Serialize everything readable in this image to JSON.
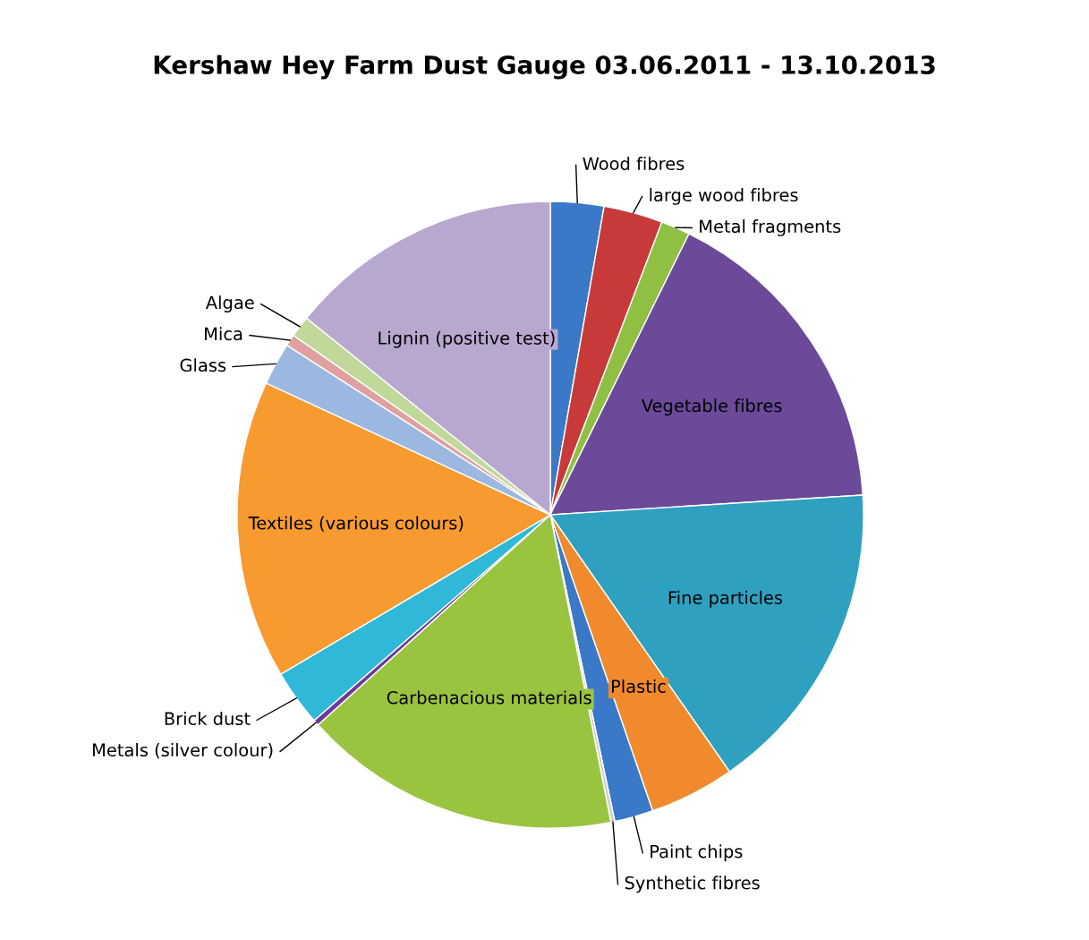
{
  "chart_data": {
    "type": "pie",
    "title": "Kershaw Hey Farm Dust Gauge 03.06.2011 - 13.10.2013",
    "categories": [
      "Wood fibres",
      "large wood fibres",
      "Metal fragments",
      "Vegetable fibres",
      "Fine particles",
      "Plastic",
      "Paint chips",
      "Synthetic fibres",
      "Carbenacious materials",
      "Metals (silver colour)",
      "Brick dust",
      "Textiles (various colours)",
      "Glass",
      "Mica",
      "Algae",
      "Lignin (positive test)"
    ],
    "values": [
      2.75,
      3.05,
      1.5,
      16.7,
      16.3,
      4.4,
      2.0,
      0.2,
      16.4,
      0.3,
      2.9,
      15.4,
      2.2,
      0.6,
      1.1,
      14.2
    ],
    "colors": [
      "#3a78c8",
      "#c83a3a",
      "#8fc043",
      "#6b4a9a",
      "#2fa0c0",
      "#f08a2c",
      "#3a78c8",
      "#d0d0d0",
      "#9ac43f",
      "#6b3a9a",
      "#30b8d8",
      "#f79a30",
      "#9ab8e0",
      "#e0a0a0",
      "#c0d89a",
      "#b8a8d0"
    ],
    "legend": false
  }
}
